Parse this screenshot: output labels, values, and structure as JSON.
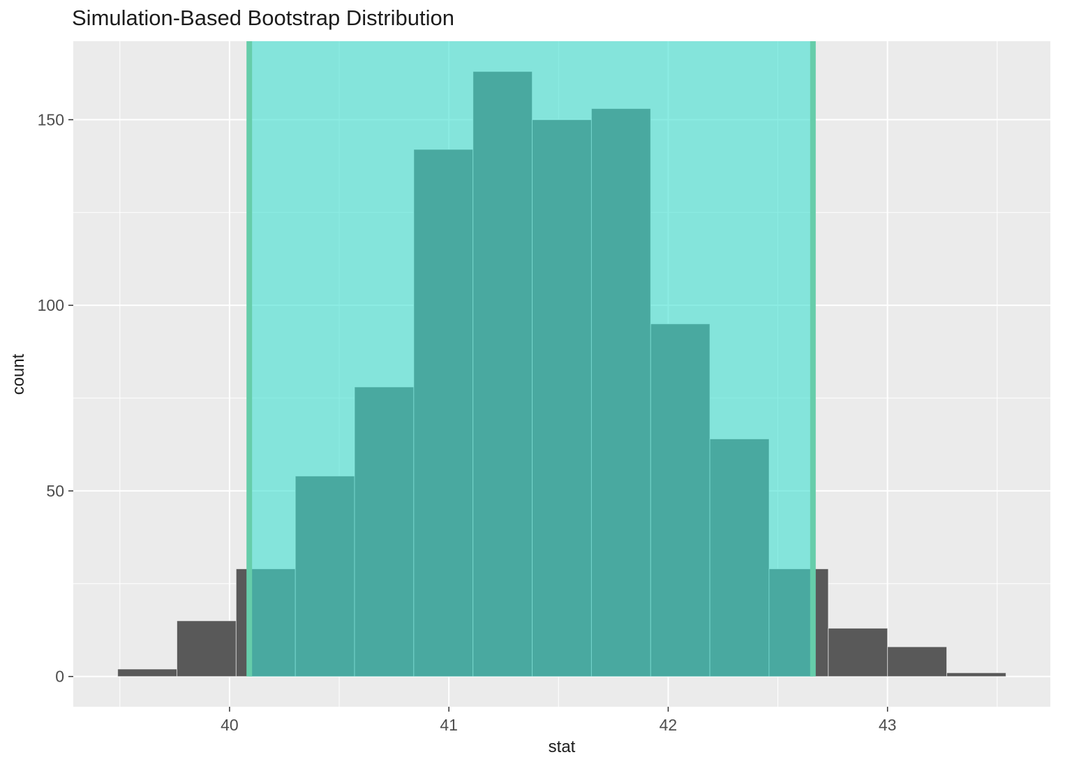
{
  "chart_data": {
    "type": "bar",
    "chart_kind": "histogram",
    "title": "Simulation-Based Bootstrap Distribution",
    "xlabel": "stat",
    "ylabel": "count",
    "bins": {
      "start": 39.49,
      "width": 0.27
    },
    "counts": [
      2,
      15,
      29,
      54,
      78,
      142,
      163,
      150,
      153,
      95,
      64,
      29,
      13,
      8,
      1
    ],
    "x_ticks": [
      40,
      41,
      42,
      43
    ],
    "y_ticks": [
      0,
      50,
      100,
      150
    ],
    "x_minor_ticks": [
      39.5,
      40.5,
      41.5,
      42.5,
      43.5
    ],
    "y_minor_ticks": [
      25,
      75,
      125
    ],
    "xlim": [
      39.29,
      43.74
    ],
    "ylim": [
      -8.2,
      171.2
    ],
    "confidence_interval": {
      "lower": 40.09,
      "upper": 42.66
    },
    "grid": true,
    "legend_position": "none",
    "colors": {
      "bar_fill": "#595959",
      "bar_stroke": "rgba(255,255,255,0.55)",
      "panel_bg": "#EBEBEB",
      "grid_major": "#FFFFFF",
      "grid_minor": "#FFFFFF",
      "ci_fill": "rgba(64,224,208,0.6)",
      "ci_line": "#66CDAA",
      "tick_mark": "#333333",
      "tick_label": "#4D4D4D",
      "text": "#1C1C1C"
    }
  }
}
